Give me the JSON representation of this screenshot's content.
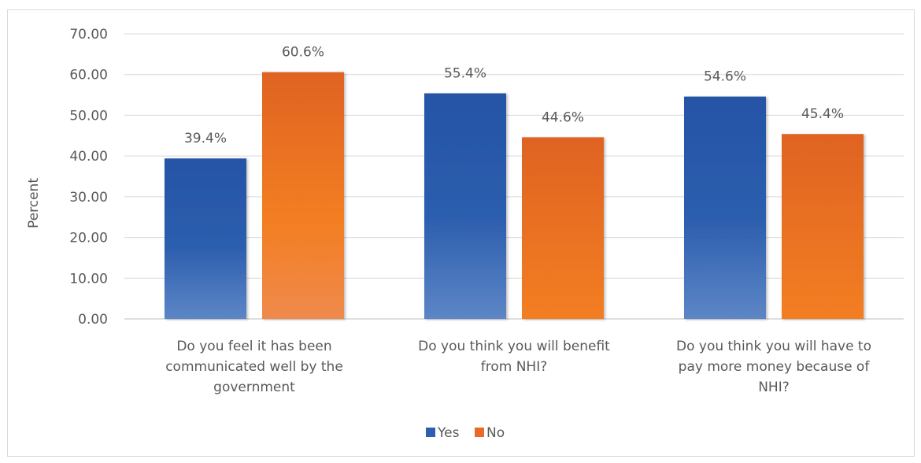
{
  "chart_data": {
    "type": "bar",
    "ylabel": "Percent",
    "ylim": [
      0,
      70
    ],
    "ytick_step": 10,
    "ytick_labels": [
      "0.00",
      "10.00",
      "20.00",
      "30.00",
      "40.00",
      "50.00",
      "60.00",
      "70.00"
    ],
    "categories": [
      [
        "Do you feel it has been",
        "communicated well by the",
        "government"
      ],
      [
        "Do you think you will benefit",
        "from NHI?"
      ],
      [
        "Do you think you will have to",
        "pay more money because of",
        "NHI?"
      ]
    ],
    "series": [
      {
        "name": "Yes",
        "color": "#2e5fae",
        "values": [
          39.4,
          55.4,
          54.6
        ],
        "labels": [
          "39.4%",
          "55.4%",
          "54.6%"
        ]
      },
      {
        "name": "No",
        "color": "#e8692a",
        "values": [
          60.6,
          44.6,
          45.4
        ],
        "labels": [
          "60.6%",
          "44.6%",
          "45.4%"
        ]
      }
    ],
    "grid": true,
    "legend_position": "bottom"
  }
}
